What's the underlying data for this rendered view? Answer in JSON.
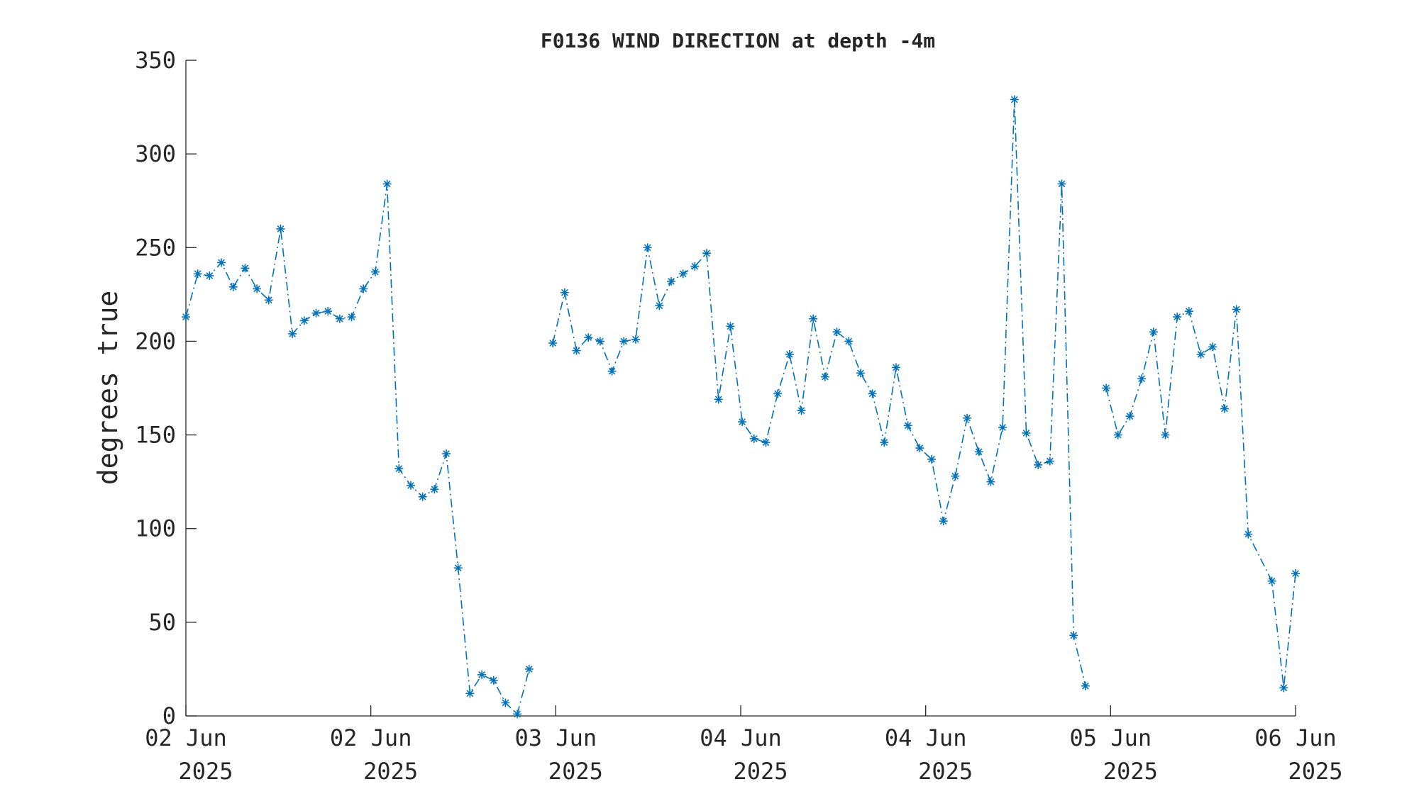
{
  "chart_data": {
    "type": "line",
    "title": "F0136 WIND DIRECTION at depth -4m",
    "xlabel": "",
    "ylabel": "degrees true",
    "ylim": [
      0,
      350
    ],
    "xlim": [
      0,
      6
    ],
    "y_ticks": [
      0,
      50,
      100,
      150,
      200,
      250,
      300,
      350
    ],
    "x_ticks": [
      {
        "pos": 0,
        "line1": "02 Jun",
        "line2": "2025"
      },
      {
        "pos": 1,
        "line1": "02 Jun",
        "line2": "2025"
      },
      {
        "pos": 2,
        "line1": "03 Jun",
        "line2": "2025"
      },
      {
        "pos": 3,
        "line1": "04 Jun",
        "line2": "2025"
      },
      {
        "pos": 4,
        "line1": "04 Jun",
        "line2": "2025"
      },
      {
        "pos": 5,
        "line1": "05 Jun",
        "line2": "2025"
      },
      {
        "pos": 6,
        "line1": "06 Jun",
        "line2": "2025"
      }
    ],
    "grid": false,
    "series_color": "#0072BD",
    "line_style": "dash-dot",
    "marker": "asterisk",
    "series": [
      {
        "name": "",
        "segments": [
          [
            [
              0.0,
              213
            ],
            [
              0.064,
              236
            ],
            [
              0.128,
              235
            ],
            [
              0.192,
              242
            ],
            [
              0.256,
              229
            ],
            [
              0.32,
              239
            ],
            [
              0.384,
              228
            ],
            [
              0.448,
              222
            ],
            [
              0.512,
              260
            ],
            [
              0.576,
              204
            ],
            [
              0.64,
              211
            ],
            [
              0.704,
              215
            ],
            [
              0.768,
              216
            ],
            [
              0.832,
              212
            ],
            [
              0.896,
              213
            ],
            [
              0.96,
              228
            ],
            [
              1.024,
              237
            ],
            [
              1.088,
              284
            ],
            [
              1.152,
              132
            ],
            [
              1.216,
              123
            ],
            [
              1.28,
              117
            ],
            [
              1.344,
              121
            ],
            [
              1.408,
              140
            ],
            [
              1.472,
              79
            ],
            [
              1.536,
              12
            ],
            [
              1.6,
              22
            ],
            [
              1.664,
              19
            ],
            [
              1.728,
              7
            ],
            [
              1.792,
              1
            ],
            [
              1.856,
              25
            ]
          ],
          [
            [
              1.984,
              199
            ],
            [
              2.048,
              226
            ],
            [
              2.112,
              195
            ],
            [
              2.176,
              202
            ],
            [
              2.24,
              200
            ],
            [
              2.304,
              184
            ],
            [
              2.368,
              200
            ],
            [
              2.432,
              201
            ],
            [
              2.496,
              250
            ],
            [
              2.56,
              219
            ],
            [
              2.624,
              232
            ],
            [
              2.688,
              236
            ],
            [
              2.752,
              240
            ],
            [
              2.816,
              247
            ],
            [
              2.88,
              169
            ],
            [
              2.944,
              208
            ],
            [
              3.008,
              157
            ],
            [
              3.072,
              148
            ],
            [
              3.136,
              146
            ],
            [
              3.2,
              172
            ],
            [
              3.264,
              193
            ],
            [
              3.328,
              163
            ],
            [
              3.392,
              212
            ],
            [
              3.456,
              181
            ],
            [
              3.52,
              205
            ],
            [
              3.584,
              200
            ],
            [
              3.648,
              183
            ],
            [
              3.712,
              172
            ],
            [
              3.776,
              146
            ],
            [
              3.84,
              186
            ],
            [
              3.904,
              155
            ],
            [
              3.968,
              143
            ],
            [
              4.032,
              137
            ],
            [
              4.096,
              104
            ],
            [
              4.16,
              128
            ],
            [
              4.224,
              159
            ],
            [
              4.288,
              141
            ],
            [
              4.352,
              125
            ],
            [
              4.416,
              154
            ],
            [
              4.48,
              329
            ],
            [
              4.544,
              151
            ],
            [
              4.608,
              134
            ],
            [
              4.672,
              136
            ],
            [
              4.736,
              284
            ],
            [
              4.8,
              43
            ],
            [
              4.864,
              16
            ]
          ],
          [
            [
              4.976,
              175
            ],
            [
              5.04,
              150
            ],
            [
              5.104,
              160
            ],
            [
              5.168,
              180
            ],
            [
              5.232,
              205
            ],
            [
              5.296,
              150
            ],
            [
              5.36,
              213
            ],
            [
              5.424,
              216
            ],
            [
              5.488,
              193
            ],
            [
              5.552,
              197
            ],
            [
              5.616,
              164
            ],
            [
              5.68,
              217
            ],
            [
              5.744,
              97
            ],
            [
              5.872,
              72
            ],
            [
              5.936,
              15
            ],
            [
              6.0,
              76
            ]
          ]
        ]
      }
    ]
  }
}
